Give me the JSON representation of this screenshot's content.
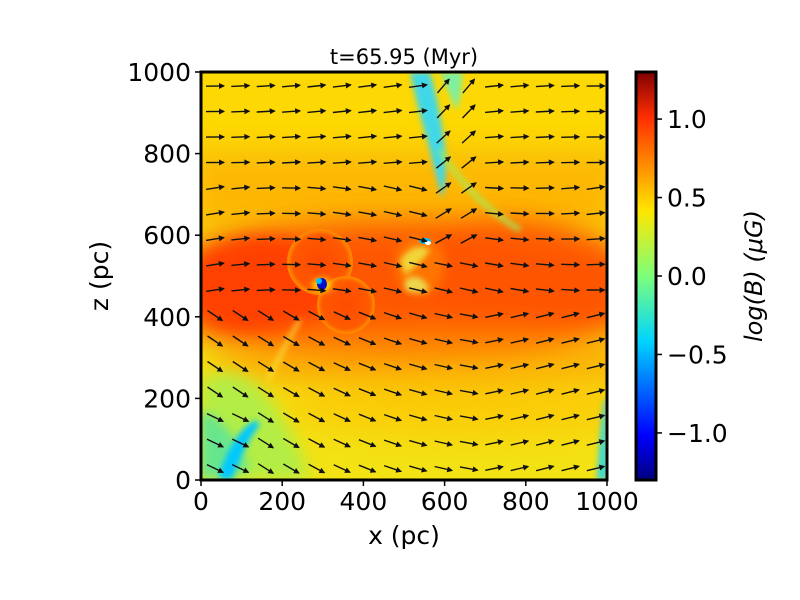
{
  "chart_data": {
    "type": "heatmap",
    "title": "t=65.95 (Myr)",
    "xlabel": "x (pc)",
    "ylabel": "z (pc)",
    "xlim": [
      0,
      1000
    ],
    "ylim": [
      0,
      1000
    ],
    "xticks": [
      "0",
      "200",
      "400",
      "600",
      "800",
      "1000"
    ],
    "yticks": [
      "0",
      "200",
      "400",
      "600",
      "800",
      "1000"
    ],
    "colorbar": {
      "label": "log(B) (μG)",
      "range": [
        -1.3,
        1.3
      ],
      "ticks": [
        "−1.0",
        "−0.5",
        "0.0",
        "0.5",
        "1.0"
      ],
      "tick_values": [
        -1.0,
        -0.5,
        0.0,
        0.5,
        1.0
      ],
      "colormap": "jet"
    },
    "overlay": "magnetic field direction arrows",
    "features": [
      {
        "x": 310,
        "z": 480,
        "note": "low-B core (blue) near bubble"
      },
      {
        "x": 560,
        "z": 590,
        "note": "low-B spot"
      },
      {
        "x": 560,
        "z": 950,
        "note": "cyan filament top"
      },
      {
        "x": 80,
        "z": 50,
        "note": "cyan filament bottom-left"
      },
      {
        "x": 990,
        "z": 60,
        "note": "cyan bottom-right edge"
      }
    ]
  },
  "colors": {
    "axis_frame": "#000000",
    "arrow": "#111111"
  }
}
